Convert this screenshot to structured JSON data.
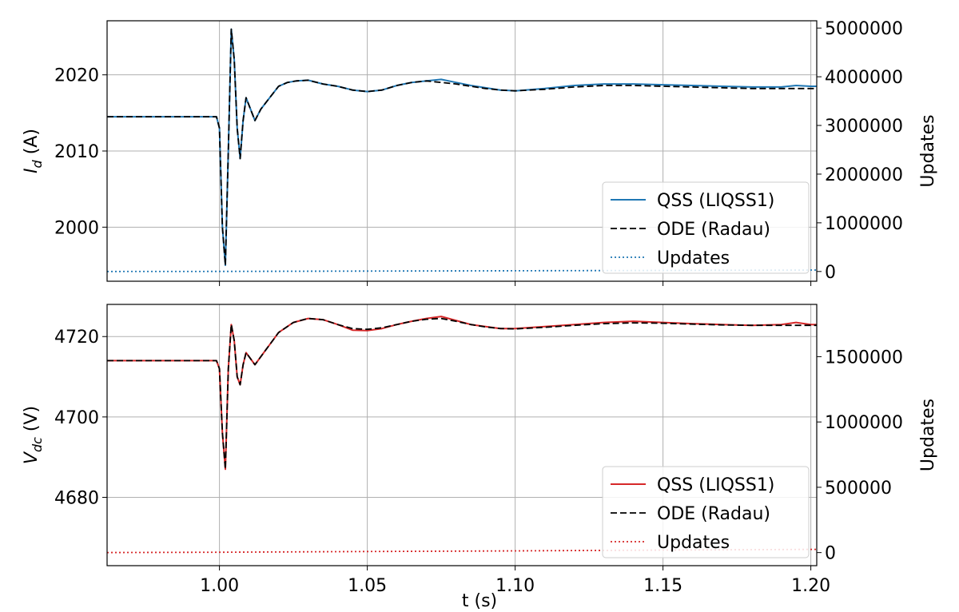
{
  "chart_data": [
    {
      "type": "line",
      "ylabel": {
        "main": "I",
        "sub": "d",
        "unit": " (A)"
      },
      "y2label": "Updates",
      "xlim": [
        0.962,
        1.202
      ],
      "ylim": [
        1992.9,
        2027.1
      ],
      "y2lim": [
        -200000,
        5150000
      ],
      "xticks": [
        "1.00",
        "1.05",
        "1.10",
        "1.15",
        "1.20"
      ],
      "xtick_values": [
        1.0,
        1.05,
        1.1,
        1.15,
        1.2
      ],
      "yticks": [
        "2000",
        "2010",
        "2020"
      ],
      "ytick_values": [
        2000,
        2010,
        2020
      ],
      "y2ticks": [
        "0",
        "1000000",
        "2000000",
        "3000000",
        "4000000",
        "5000000"
      ],
      "y2tick_values": [
        0,
        1000000,
        2000000,
        3000000,
        4000000,
        5000000
      ],
      "grid": true,
      "legend_position": "lower-right",
      "series": [
        {
          "name": "QSS (LIQSS1)",
          "color": "#1f77b4",
          "style": "solid",
          "axis": "left",
          "x": [
            0.962,
            0.999,
            1.0,
            1.001,
            1.002,
            1.003,
            1.004,
            1.005,
            1.006,
            1.007,
            1.008,
            1.009,
            1.01,
            1.012,
            1.014,
            1.016,
            1.018,
            1.02,
            1.023,
            1.026,
            1.03,
            1.035,
            1.04,
            1.045,
            1.05,
            1.055,
            1.06,
            1.065,
            1.07,
            1.075,
            1.08,
            1.085,
            1.09,
            1.095,
            1.1,
            1.11,
            1.12,
            1.13,
            1.14,
            1.15,
            1.16,
            1.17,
            1.18,
            1.19,
            1.195,
            1.2,
            1.202
          ],
          "values": [
            2014.5,
            2014.5,
            2013.0,
            2000.0,
            1995.0,
            2010.0,
            2026.0,
            2022.0,
            2013.0,
            2009.0,
            2014.0,
            2017.0,
            2016.0,
            2014.0,
            2015.5,
            2016.5,
            2017.5,
            2018.5,
            2019.0,
            2019.2,
            2019.3,
            2018.8,
            2018.5,
            2018.0,
            2017.8,
            2018.0,
            2018.6,
            2019.0,
            2019.2,
            2019.4,
            2019.0,
            2018.6,
            2018.3,
            2018.0,
            2017.9,
            2018.2,
            2018.6,
            2018.8,
            2018.8,
            2018.7,
            2018.6,
            2018.5,
            2018.4,
            2018.4,
            2018.6,
            2018.5,
            2018.5
          ]
        },
        {
          "name": "ODE (Radau)",
          "color": "#000000",
          "style": "dashed",
          "axis": "left",
          "x": [
            0.962,
            0.999,
            1.0,
            1.001,
            1.002,
            1.003,
            1.004,
            1.005,
            1.006,
            1.007,
            1.008,
            1.009,
            1.01,
            1.012,
            1.014,
            1.016,
            1.018,
            1.02,
            1.023,
            1.026,
            1.03,
            1.035,
            1.04,
            1.045,
            1.05,
            1.055,
            1.06,
            1.065,
            1.07,
            1.075,
            1.08,
            1.085,
            1.09,
            1.095,
            1.1,
            1.11,
            1.12,
            1.13,
            1.14,
            1.15,
            1.16,
            1.17,
            1.18,
            1.19,
            1.195,
            1.2,
            1.202
          ],
          "values": [
            2014.5,
            2014.5,
            2013.0,
            2000.0,
            1995.0,
            2010.0,
            2026.0,
            2022.0,
            2013.0,
            2009.0,
            2014.0,
            2017.0,
            2016.0,
            2014.0,
            2015.5,
            2016.5,
            2017.5,
            2018.5,
            2019.0,
            2019.2,
            2019.3,
            2018.8,
            2018.5,
            2018.0,
            2017.8,
            2018.0,
            2018.6,
            2019.0,
            2019.2,
            2019.0,
            2018.8,
            2018.5,
            2018.2,
            2018.0,
            2017.9,
            2018.1,
            2018.4,
            2018.6,
            2018.6,
            2018.5,
            2018.4,
            2018.3,
            2018.2,
            2018.2,
            2018.2,
            2018.2,
            2018.2
          ]
        },
        {
          "name": "Updates",
          "color": "#1f77b4",
          "style": "dotted",
          "axis": "right",
          "x": [
            0.962,
            1.0,
            1.05,
            1.1,
            1.15,
            1.202
          ],
          "values": [
            0,
            2000,
            8000,
            15000,
            22000,
            30000
          ]
        }
      ]
    },
    {
      "type": "line",
      "ylabel": {
        "main": "V",
        "sub": "dc",
        "unit": " (V)"
      },
      "y2label": "Updates",
      "xlabel": "t (s)",
      "xlim": [
        0.962,
        1.202
      ],
      "ylim": [
        4663.0,
        4728.0
      ],
      "y2lim": [
        -100000,
        1900000
      ],
      "xticks": [
        "1.00",
        "1.05",
        "1.10",
        "1.15",
        "1.20"
      ],
      "xtick_values": [
        1.0,
        1.05,
        1.1,
        1.15,
        1.2
      ],
      "yticks": [
        "4680",
        "4700",
        "4720"
      ],
      "ytick_values": [
        4680,
        4700,
        4720
      ],
      "y2ticks": [
        "0",
        "500000",
        "1000000",
        "1500000"
      ],
      "y2tick_values": [
        0,
        500000,
        1000000,
        1500000
      ],
      "grid": true,
      "legend_position": "lower-right",
      "series": [
        {
          "name": "QSS (LIQSS1)",
          "color": "#d62728",
          "style": "solid",
          "axis": "left",
          "x": [
            0.962,
            0.999,
            1.0,
            1.001,
            1.002,
            1.003,
            1.004,
            1.005,
            1.006,
            1.007,
            1.008,
            1.009,
            1.01,
            1.012,
            1.014,
            1.016,
            1.018,
            1.02,
            1.025,
            1.03,
            1.035,
            1.04,
            1.045,
            1.05,
            1.055,
            1.06,
            1.065,
            1.07,
            1.075,
            1.08,
            1.085,
            1.09,
            1.095,
            1.1,
            1.11,
            1.12,
            1.13,
            1.14,
            1.15,
            1.16,
            1.17,
            1.18,
            1.19,
            1.195,
            1.2,
            1.202
          ],
          "values": [
            4714.0,
            4714.0,
            4712.0,
            4696.0,
            4687.0,
            4712.0,
            4723.0,
            4719.0,
            4710.0,
            4708.0,
            4713.0,
            4716.0,
            4715.0,
            4713.0,
            4715.0,
            4717.0,
            4719.0,
            4721.0,
            4723.5,
            4724.5,
            4724.2,
            4723.0,
            4721.6,
            4721.5,
            4722.0,
            4723.0,
            4723.8,
            4724.5,
            4725.0,
            4724.0,
            4723.0,
            4722.5,
            4722.0,
            4722.0,
            4722.5,
            4723.0,
            4723.5,
            4723.8,
            4723.5,
            4723.2,
            4723.0,
            4722.8,
            4723.0,
            4723.5,
            4723.0,
            4723.0
          ]
        },
        {
          "name": "ODE (Radau)",
          "color": "#000000",
          "style": "dashed",
          "axis": "left",
          "x": [
            0.962,
            0.999,
            1.0,
            1.001,
            1.002,
            1.003,
            1.004,
            1.005,
            1.006,
            1.007,
            1.008,
            1.009,
            1.01,
            1.012,
            1.014,
            1.016,
            1.018,
            1.02,
            1.025,
            1.03,
            1.035,
            1.04,
            1.045,
            1.05,
            1.055,
            1.06,
            1.065,
            1.07,
            1.075,
            1.08,
            1.085,
            1.09,
            1.095,
            1.1,
            1.11,
            1.12,
            1.13,
            1.14,
            1.15,
            1.16,
            1.17,
            1.18,
            1.19,
            1.195,
            1.2,
            1.202
          ],
          "values": [
            4714.0,
            4714.0,
            4712.0,
            4696.0,
            4687.0,
            4712.0,
            4723.0,
            4719.0,
            4710.0,
            4708.0,
            4713.0,
            4716.0,
            4715.0,
            4713.0,
            4715.0,
            4717.0,
            4719.0,
            4721.0,
            4723.5,
            4724.5,
            4724.2,
            4723.0,
            4722.0,
            4721.8,
            4722.2,
            4723.0,
            4723.8,
            4724.3,
            4724.5,
            4723.8,
            4723.0,
            4722.4,
            4722.0,
            4721.9,
            4722.3,
            4722.8,
            4723.2,
            4723.4,
            4723.3,
            4723.1,
            4722.9,
            4722.8,
            4722.8,
            4722.8,
            4722.8,
            4722.8
          ]
        },
        {
          "name": "Updates",
          "color": "#d62728",
          "style": "dotted",
          "axis": "right",
          "x": [
            0.962,
            1.0,
            1.05,
            1.1,
            1.15,
            1.202
          ],
          "values": [
            0,
            3000,
            8000,
            13000,
            19000,
            25000
          ]
        }
      ]
    }
  ]
}
